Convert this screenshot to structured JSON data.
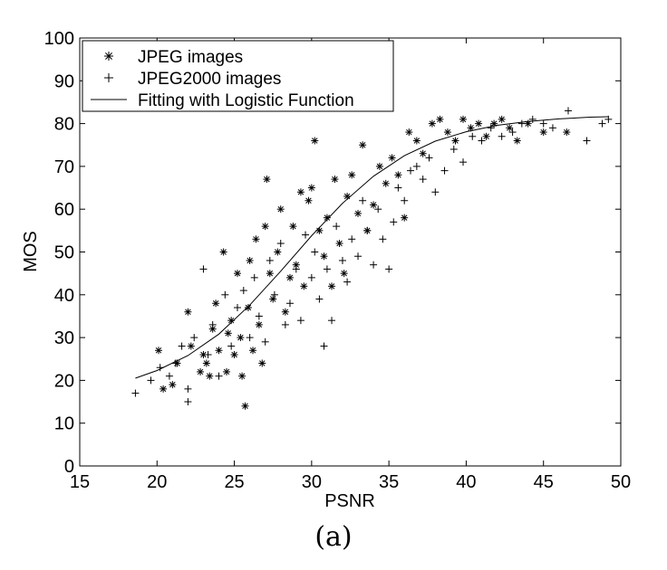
{
  "chart_data": {
    "type": "scatter",
    "title": "",
    "xlabel": "PSNR",
    "ylabel": "MOS",
    "xlim": [
      15,
      50
    ],
    "ylim": [
      0,
      100
    ],
    "xticks": [
      15,
      20,
      25,
      30,
      35,
      40,
      45,
      50
    ],
    "yticks": [
      0,
      10,
      20,
      30,
      40,
      50,
      60,
      70,
      80,
      90,
      100
    ],
    "grid": false,
    "legend_position": "top-left",
    "legend": [
      {
        "label": "JPEG images",
        "marker": "asterisk"
      },
      {
        "label": "JPEG2000 images",
        "marker": "plus"
      },
      {
        "label": "Fitting with Logistic Function",
        "marker": "line"
      }
    ],
    "series": [
      {
        "name": "JPEG images",
        "marker": "asterisk",
        "points": [
          [
            20.1,
            27
          ],
          [
            20.4,
            18
          ],
          [
            21.0,
            19
          ],
          [
            21.3,
            24
          ],
          [
            22.0,
            36
          ],
          [
            22.2,
            28
          ],
          [
            22.8,
            22
          ],
          [
            23.0,
            26
          ],
          [
            23.2,
            24
          ],
          [
            23.4,
            21
          ],
          [
            23.6,
            32
          ],
          [
            23.8,
            38
          ],
          [
            24.0,
            27
          ],
          [
            24.3,
            50
          ],
          [
            24.5,
            22
          ],
          [
            24.6,
            31
          ],
          [
            24.8,
            34
          ],
          [
            25.0,
            26
          ],
          [
            25.2,
            45
          ],
          [
            25.4,
            30
          ],
          [
            25.5,
            21
          ],
          [
            25.7,
            14
          ],
          [
            25.9,
            37
          ],
          [
            26.0,
            48
          ],
          [
            26.2,
            27
          ],
          [
            26.4,
            53
          ],
          [
            26.6,
            33
          ],
          [
            26.8,
            24
          ],
          [
            27.0,
            56
          ],
          [
            27.1,
            67
          ],
          [
            27.3,
            45
          ],
          [
            27.5,
            39
          ],
          [
            27.8,
            50
          ],
          [
            28.0,
            60
          ],
          [
            28.3,
            36
          ],
          [
            28.6,
            44
          ],
          [
            28.8,
            56
          ],
          [
            29.0,
            47
          ],
          [
            29.3,
            64
          ],
          [
            29.5,
            42
          ],
          [
            29.8,
            62
          ],
          [
            30.0,
            65
          ],
          [
            30.2,
            76
          ],
          [
            30.5,
            55
          ],
          [
            30.8,
            49
          ],
          [
            31.0,
            58
          ],
          [
            31.3,
            42
          ],
          [
            31.5,
            67
          ],
          [
            31.8,
            52
          ],
          [
            32.1,
            45
          ],
          [
            32.3,
            63
          ],
          [
            32.6,
            68
          ],
          [
            33.0,
            59
          ],
          [
            33.3,
            75
          ],
          [
            33.6,
            55
          ],
          [
            34.0,
            61
          ],
          [
            34.4,
            70
          ],
          [
            34.8,
            66
          ],
          [
            35.2,
            72
          ],
          [
            35.6,
            68
          ],
          [
            36.0,
            58
          ],
          [
            36.3,
            78
          ],
          [
            36.8,
            76
          ],
          [
            37.2,
            73
          ],
          [
            37.8,
            80
          ],
          [
            38.3,
            81
          ],
          [
            38.8,
            78
          ],
          [
            39.3,
            76
          ],
          [
            39.8,
            81
          ],
          [
            40.3,
            79
          ],
          [
            40.8,
            80
          ],
          [
            41.3,
            77
          ],
          [
            41.8,
            80
          ],
          [
            42.3,
            81
          ],
          [
            42.8,
            79
          ],
          [
            43.3,
            76
          ],
          [
            44.0,
            80
          ],
          [
            45.0,
            78
          ],
          [
            46.5,
            78
          ]
        ]
      },
      {
        "name": "JPEG2000 images",
        "marker": "plus",
        "points": [
          [
            18.6,
            17
          ],
          [
            19.6,
            20
          ],
          [
            20.2,
            23
          ],
          [
            20.8,
            21
          ],
          [
            21.2,
            24
          ],
          [
            21.6,
            28
          ],
          [
            22.0,
            15
          ],
          [
            22.0,
            18
          ],
          [
            22.4,
            30
          ],
          [
            23.0,
            46
          ],
          [
            23.3,
            26
          ],
          [
            23.6,
            33
          ],
          [
            24.0,
            21
          ],
          [
            24.4,
            40
          ],
          [
            24.8,
            28
          ],
          [
            25.2,
            37
          ],
          [
            25.6,
            41
          ],
          [
            26.0,
            30
          ],
          [
            26.3,
            44
          ],
          [
            26.6,
            35
          ],
          [
            27.0,
            29
          ],
          [
            27.3,
            48
          ],
          [
            27.6,
            40
          ],
          [
            28.0,
            52
          ],
          [
            28.3,
            33
          ],
          [
            28.6,
            38
          ],
          [
            29.0,
            46
          ],
          [
            29.3,
            34
          ],
          [
            29.6,
            54
          ],
          [
            30.0,
            44
          ],
          [
            30.2,
            50
          ],
          [
            30.5,
            39
          ],
          [
            30.8,
            28
          ],
          [
            31.0,
            46
          ],
          [
            31.3,
            34
          ],
          [
            31.6,
            56
          ],
          [
            32.0,
            48
          ],
          [
            32.3,
            43
          ],
          [
            32.6,
            53
          ],
          [
            33.0,
            49
          ],
          [
            33.3,
            62
          ],
          [
            33.6,
            55
          ],
          [
            34.0,
            47
          ],
          [
            34.3,
            60
          ],
          [
            34.6,
            53
          ],
          [
            35.0,
            46
          ],
          [
            35.3,
            57
          ],
          [
            35.6,
            65
          ],
          [
            36.0,
            62
          ],
          [
            36.4,
            69
          ],
          [
            36.8,
            70
          ],
          [
            37.2,
            67
          ],
          [
            37.6,
            72
          ],
          [
            38.0,
            64
          ],
          [
            38.6,
            69
          ],
          [
            39.2,
            74
          ],
          [
            39.8,
            71
          ],
          [
            40.4,
            77
          ],
          [
            41.0,
            76
          ],
          [
            41.6,
            79
          ],
          [
            42.3,
            77
          ],
          [
            43.0,
            78
          ],
          [
            43.6,
            80
          ],
          [
            44.3,
            81
          ],
          [
            45.0,
            80
          ],
          [
            45.6,
            79
          ],
          [
            46.6,
            83
          ],
          [
            47.8,
            76
          ],
          [
            48.8,
            80
          ],
          [
            49.2,
            81
          ]
        ]
      },
      {
        "name": "Fitting with Logistic Function",
        "marker": "line",
        "points": [
          [
            18.6,
            20.5
          ],
          [
            20,
            22.3
          ],
          [
            22,
            25.8
          ],
          [
            24,
            30.8
          ],
          [
            26,
            37.6
          ],
          [
            28,
            45.5
          ],
          [
            30,
            53.8
          ],
          [
            32,
            61.4
          ],
          [
            34,
            67.7
          ],
          [
            36,
            72.5
          ],
          [
            38,
            75.9
          ],
          [
            40,
            78.1
          ],
          [
            42,
            79.6
          ],
          [
            44,
            80.5
          ],
          [
            46,
            81.1
          ],
          [
            48,
            81.5
          ],
          [
            49.2,
            81.6
          ]
        ]
      }
    ]
  },
  "caption": "(a)"
}
